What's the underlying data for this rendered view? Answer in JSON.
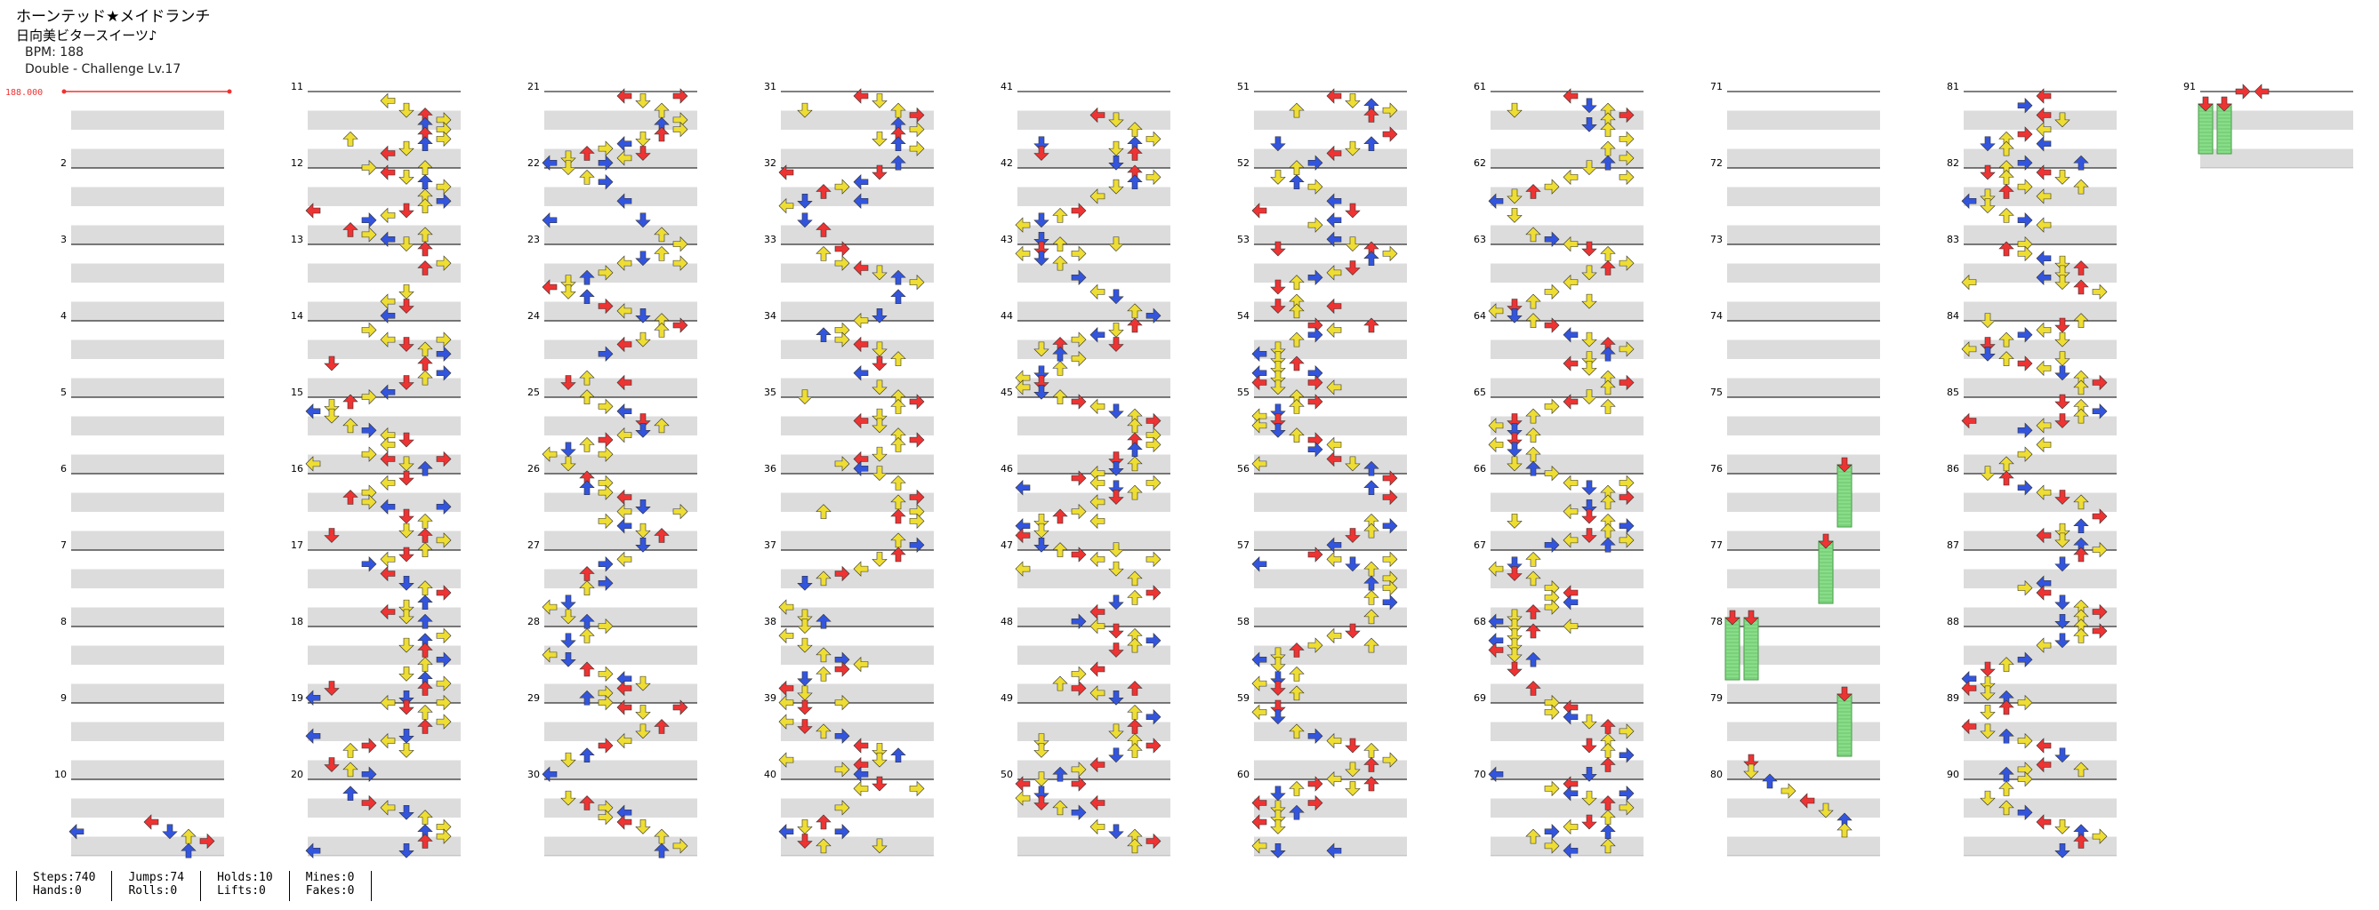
{
  "song": {
    "title": "ホーンテッド★メイドランチ",
    "artist": "日向美ビタースイーツ♪",
    "bpm_label": "BPM: 188",
    "difficulty_label": "Double - Challenge Lv.17"
  },
  "bpm_marker": "188.000",
  "stats": {
    "steps": "Steps:740",
    "hands": "Hands:0",
    "jumps": "Jumps:74",
    "rolls": "Rolls:0",
    "holds": "Holds:10",
    "lifts": "Lifts:0",
    "mines": "Mines:0",
    "fakes": "Fakes:0"
  },
  "colors": {
    "quarter": "#ee3333",
    "eighth": "#3355dd",
    "sixteenth": "#eedd33",
    "hold": "#88dd88",
    "band": "#dcdcdc"
  },
  "icons": [
    "arrow-left-icon",
    "arrow-down-icon",
    "arrow-up-icon",
    "arrow-right-icon",
    "hold-note-icon"
  ],
  "measure_numbers": [
    2,
    3,
    4,
    5,
    6,
    7,
    8,
    9,
    10,
    11,
    12,
    13,
    14,
    15,
    16,
    17,
    18,
    19,
    20,
    21,
    22,
    23,
    24,
    25,
    26,
    27,
    28,
    29,
    30,
    31,
    32,
    33,
    34,
    35,
    36,
    37,
    38,
    39,
    40,
    41,
    42,
    43,
    44,
    45,
    46,
    47,
    48,
    49,
    50,
    51,
    52,
    53,
    54,
    55,
    56,
    57,
    58,
    59,
    60,
    61,
    62,
    63,
    64,
    65,
    66,
    67,
    68,
    69,
    70,
    71,
    72,
    73,
    74,
    75,
    76,
    77,
    78,
    79,
    80,
    81,
    82,
    83,
    84,
    85,
    86,
    87,
    88,
    89,
    90,
    91
  ]
}
